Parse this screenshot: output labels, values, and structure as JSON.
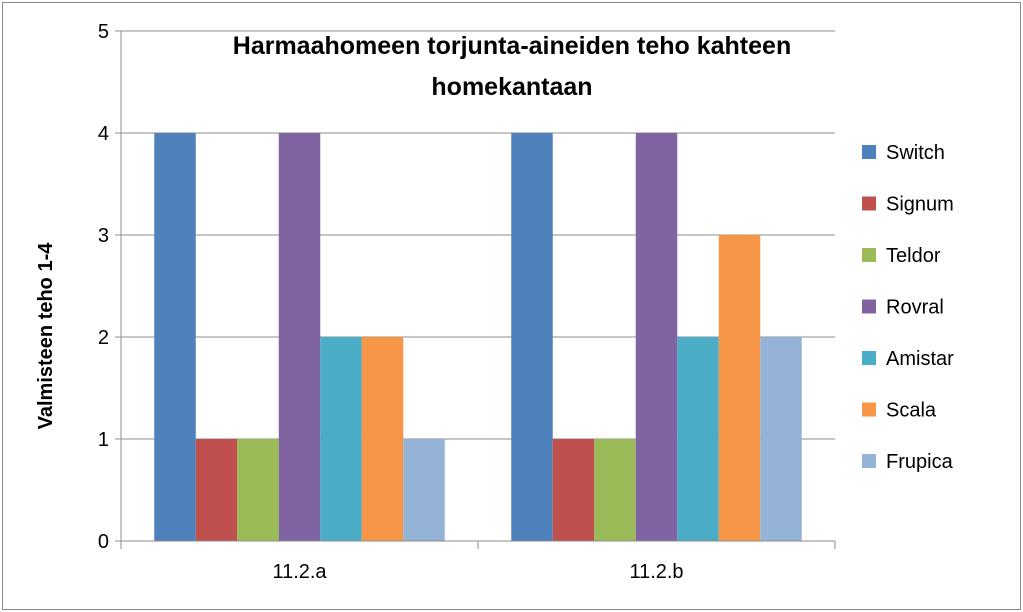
{
  "chart_data": {
    "type": "bar",
    "title_lines": [
      "Harmaahomeen torjunta-aineiden teho kahteen",
      "homekantaan"
    ],
    "xlabel": "",
    "ylabel": "Valmisteen teho 1-4",
    "ylim": [
      0,
      5
    ],
    "yticks": [
      0,
      1,
      2,
      3,
      4,
      5
    ],
    "grid": true,
    "legend_position": "right",
    "categories": [
      "11.2.a",
      "11.2.b"
    ],
    "series": [
      {
        "name": "Switch",
        "color": "#4f81bd",
        "values": [
          4,
          4
        ]
      },
      {
        "name": "Signum",
        "color": "#c0504d",
        "values": [
          1,
          1
        ]
      },
      {
        "name": "Teldor",
        "color": "#9bbb59",
        "values": [
          1,
          1
        ]
      },
      {
        "name": "Rovral",
        "color": "#8064a2",
        "values": [
          4,
          4
        ]
      },
      {
        "name": "Amistar",
        "color": "#4bacc6",
        "values": [
          2,
          2
        ]
      },
      {
        "name": "Scala",
        "color": "#f79646",
        "values": [
          2,
          3
        ]
      },
      {
        "name": "Frupica",
        "color": "#95b3d7",
        "values": [
          1,
          2
        ]
      }
    ]
  }
}
